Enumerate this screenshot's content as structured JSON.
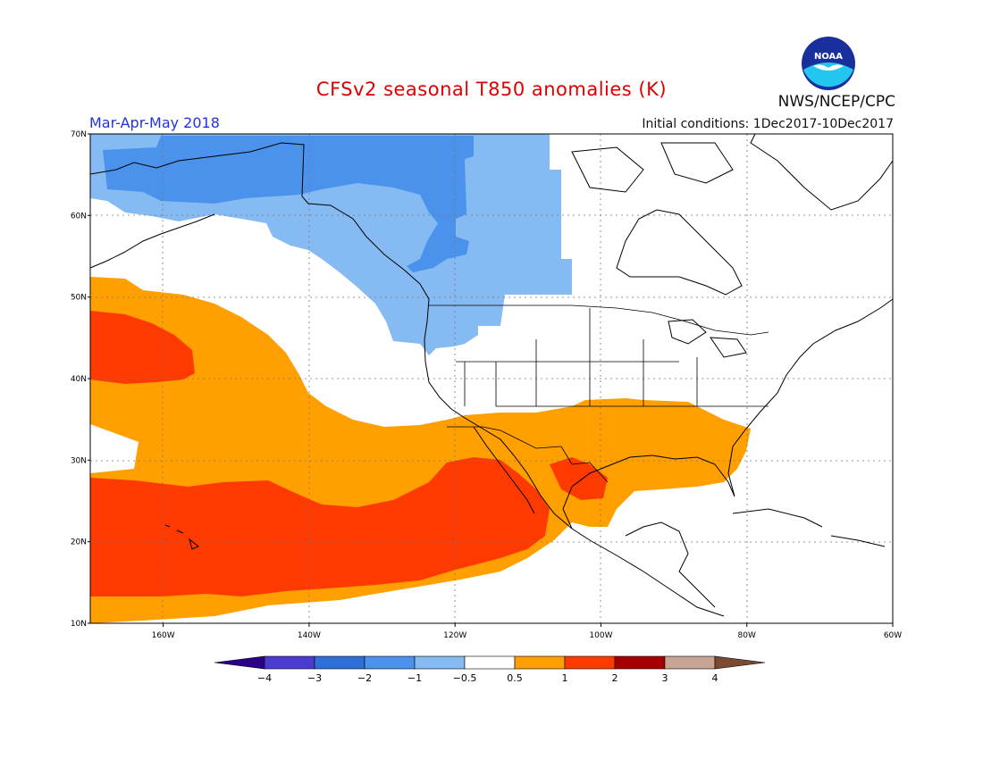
{
  "header": {
    "title": "CFSv2 seasonal T850 anomalies (K)",
    "period": "Mar-Apr-May 2018",
    "initial_conditions": "Initial conditions: 1Dec2017-10Dec2017",
    "organization": "NWS/NCEP/CPC",
    "logo_text": "NOAA"
  },
  "axes": {
    "lat_labels": [
      "70N",
      "60N",
      "50N",
      "40N",
      "30N",
      "20N",
      "10N"
    ],
    "lon_labels": [
      "160W",
      "140W",
      "120W",
      "100W",
      "80W",
      "60W"
    ],
    "lat_range": [
      10,
      70
    ],
    "lon_range": [
      -170,
      -60
    ]
  },
  "colorbar": {
    "ticks": [
      "-4",
      "-3",
      "-2",
      "-1",
      "-0.5",
      "0.5",
      "1",
      "2",
      "3",
      "4"
    ],
    "colors": {
      "lt_-4": "#2a0088",
      "-4_-3": "#4b3ccf",
      "-3_-2": "#2f6fd8",
      "-2_-1": "#4a92ec",
      "-1_-0.5": "#85baf2",
      "-0.5_0.5": "#ffffff",
      "0.5_1": "#ff9f00",
      "1_2": "#ff3a00",
      "2_3": "#a50000",
      "3_4": "#c8a494",
      "gt_4": "#7a4a32"
    }
  },
  "anomaly_colors": {
    "neg_1_2": "#4a92ec",
    "neg_05_1": "#85baf2",
    "pos_05_1": "#ff9f00",
    "pos_1_2": "#ff3a00"
  }
}
